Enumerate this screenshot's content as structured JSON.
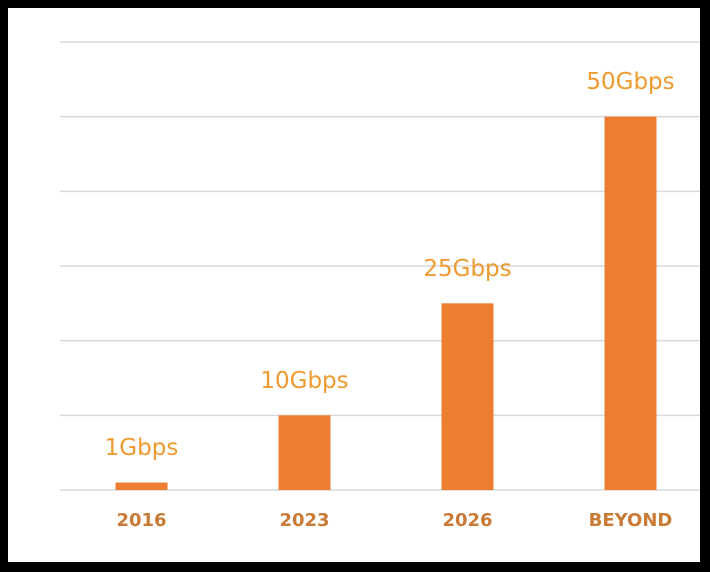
{
  "chart_data": {
    "type": "bar",
    "categories": [
      "2016",
      "2023",
      "2026",
      "BEYOND"
    ],
    "values": [
      1,
      10,
      25,
      50
    ],
    "value_labels": [
      "1Gbps",
      "10Gbps",
      "25Gbps",
      "50Gbps"
    ],
    "color": "#ed7d31",
    "ylim": [
      0,
      60
    ],
    "yticks": [
      0,
      10,
      20,
      30,
      40,
      50,
      60
    ],
    "grid": true
  }
}
